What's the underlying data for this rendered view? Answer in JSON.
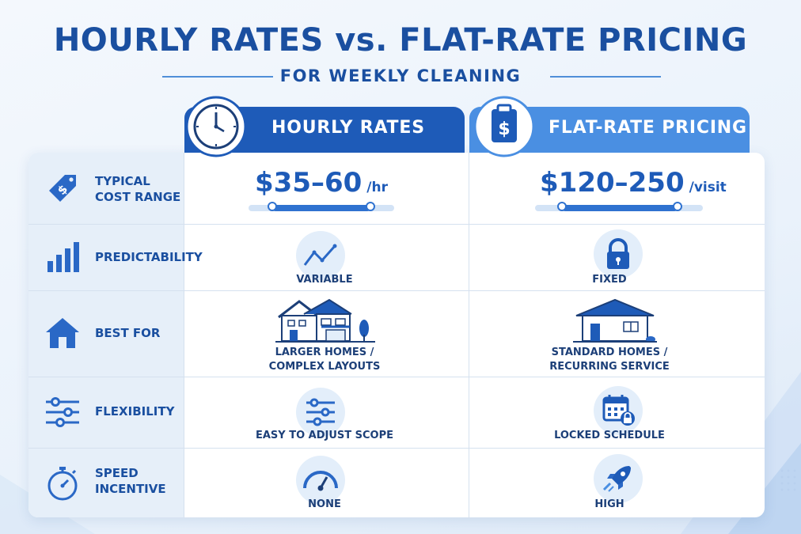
{
  "title": "HOURLY RATES vs. FLAT-RATE PRICING",
  "subtitle": "FOR WEEKLY CLEANING",
  "columns": {
    "hourly": {
      "label": "HOURLY RATES",
      "icon": "clock-icon"
    },
    "flat": {
      "label": "FLAT-RATE PRICING",
      "icon": "clipboard-dollar-icon"
    }
  },
  "rows": {
    "cost": {
      "label_line1": "TYPICAL",
      "label_line2": "COST RANGE",
      "icon": "price-tag-icon",
      "hourly_value": "$35–60",
      "hourly_unit": "/hr",
      "flat_value": "$120–250",
      "flat_unit": "/visit"
    },
    "predictability": {
      "label": "PREDICTABILITY",
      "icon": "bar-chart-icon",
      "hourly": "VARIABLE",
      "hourly_icon": "trend-line-icon",
      "flat": "FIXED",
      "flat_icon": "lock-icon"
    },
    "best_for": {
      "label": "BEST FOR",
      "icon": "house-icon",
      "hourly_line1": "LARGER HOMES /",
      "hourly_line2": "COMPLEX LAYOUTS",
      "hourly_icon": "large-house-icon",
      "flat_line1": "STANDARD HOMES /",
      "flat_line2": "RECURRING SERVICE",
      "flat_icon": "small-house-icon"
    },
    "flexibility": {
      "label": "FLEXIBILITY",
      "icon": "sliders-icon",
      "hourly": "EASY TO ADJUST SCOPE",
      "hourly_icon": "sliders-icon",
      "flat": "LOCKED SCHEDULE",
      "flat_icon": "calendar-lock-icon"
    },
    "speed": {
      "label_line1": "SPEED",
      "label_line2": "INCENTIVE",
      "icon": "stopwatch-icon",
      "hourly": "NONE",
      "hourly_icon": "gauge-icon",
      "flat": "HIGH",
      "flat_icon": "rocket-icon"
    }
  },
  "colors": {
    "primary": "#1e5bb8",
    "secondary": "#4a8fe2",
    "title": "#1a4fa0",
    "panel": "#e6eff9"
  }
}
